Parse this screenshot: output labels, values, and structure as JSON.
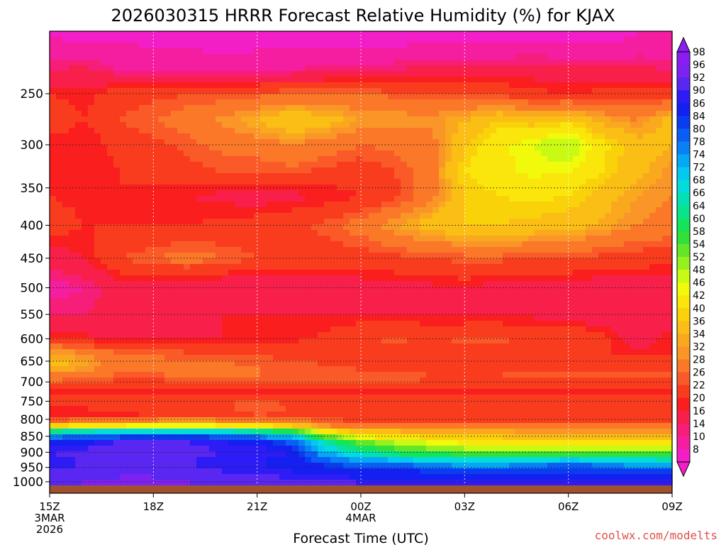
{
  "chart_data": {
    "type": "heatmap",
    "title": "2026030315 HRRR Forecast Relative Humidity (%) for KJAX",
    "xlabel": "Forecast Time (UTC)",
    "ylabel": "",
    "credit": "coolwx.com/modelts",
    "x_ticks": [
      {
        "hour": 0,
        "lines": [
          "15Z",
          "3MAR",
          "2026"
        ]
      },
      {
        "hour": 3,
        "lines": [
          "18Z"
        ]
      },
      {
        "hour": 6,
        "lines": [
          "21Z"
        ]
      },
      {
        "hour": 9,
        "lines": [
          "00Z",
          "4MAR"
        ]
      },
      {
        "hour": 12,
        "lines": [
          "03Z"
        ]
      },
      {
        "hour": 15,
        "lines": [
          "06Z"
        ]
      },
      {
        "hour": 18,
        "lines": [
          "09Z"
        ]
      }
    ],
    "xlim_hours": [
      0,
      18
    ],
    "y_ticks": [
      250,
      300,
      350,
      400,
      450,
      500,
      550,
      600,
      650,
      700,
      750,
      800,
      850,
      900,
      950,
      1000
    ],
    "ylim_hpa": [
      200,
      1013
    ],
    "y_scale": "log-pressure",
    "grid": true,
    "colorbar": {
      "placement": "right",
      "labels": [
        98,
        96,
        92,
        90,
        86,
        84,
        80,
        78,
        74,
        72,
        68,
        66,
        64,
        60,
        58,
        54,
        52,
        48,
        46,
        42,
        40,
        36,
        34,
        32,
        28,
        26,
        22,
        20,
        16,
        14,
        10,
        8
      ],
      "colors": [
        "#8a1ef2",
        "#7d22f0",
        "#5a26f2",
        "#2d1cf5",
        "#1420f0",
        "#0a3cf0",
        "#0a5ef5",
        "#0a80f5",
        "#05a8f5",
        "#04c8f0",
        "#03dcdc",
        "#04e0b4",
        "#08e48c",
        "#14e45a",
        "#32e03a",
        "#64e628",
        "#96f020",
        "#c8fa14",
        "#f0fa0a",
        "#fae60a",
        "#fad20a",
        "#fabe14",
        "#faa81e",
        "#fa9628",
        "#fa7828",
        "#fa5a28",
        "#fa3c1e",
        "#fa1e1e",
        "#f8204a",
        "#f61e78",
        "#f51ea0",
        "#f41ec8"
      ]
    },
    "rows": [
      {
        "p": 205,
        "rh": [
          10,
          9,
          9,
          9,
          9,
          8,
          8,
          8,
          8,
          8,
          8,
          8,
          8,
          8,
          9,
          9,
          9,
          10,
          10
        ]
      },
      {
        "p": 230,
        "rh": [
          16,
          17,
          14,
          13,
          12,
          12,
          13,
          14,
          15,
          15,
          16,
          18,
          18,
          18,
          18,
          17,
          17,
          17,
          16
        ]
      },
      {
        "p": 250,
        "rh": [
          22,
          21,
          24,
          25,
          26,
          26,
          27,
          28,
          28,
          28,
          27,
          27,
          26,
          25,
          23,
          22,
          23,
          24,
          24
        ]
      },
      {
        "p": 275,
        "rh": [
          24,
          22,
          26,
          28,
          30,
          33,
          36,
          40,
          38,
          34,
          34,
          33,
          36,
          40,
          38,
          41,
          35,
          32,
          38
        ]
      },
      {
        "p": 300,
        "rh": [
          21,
          20,
          23,
          25,
          27,
          29,
          30,
          32,
          30,
          28,
          29,
          30,
          40,
          45,
          48,
          52,
          43,
          38,
          36
        ]
      },
      {
        "p": 330,
        "rh": [
          22,
          20,
          22,
          23,
          25,
          26,
          26,
          27,
          25,
          24,
          26,
          30,
          42,
          45,
          47,
          46,
          42,
          37,
          33
        ]
      },
      {
        "p": 360,
        "rh": [
          22,
          21,
          22,
          21,
          20,
          19,
          18,
          19,
          20,
          22,
          25,
          30,
          40,
          42,
          43,
          42,
          38,
          34,
          32
        ]
      },
      {
        "p": 400,
        "rh": [
          24,
          22,
          22,
          22,
          22,
          23,
          24,
          25,
          27,
          30,
          34,
          38,
          40,
          40,
          39,
          38,
          35,
          32,
          30
        ]
      },
      {
        "p": 450,
        "rh": [
          18,
          20,
          26,
          28,
          30,
          28,
          26,
          25,
          24,
          24,
          25,
          26,
          27,
          27,
          26,
          26,
          25,
          24,
          24
        ]
      },
      {
        "p": 500,
        "rh": [
          12,
          14,
          18,
          18,
          17,
          16,
          16,
          17,
          18,
          18,
          19,
          19,
          20,
          18,
          18,
          18,
          17,
          18,
          16
        ]
      },
      {
        "p": 550,
        "rh": [
          16,
          16,
          18,
          19,
          19,
          20,
          20,
          20,
          20,
          20,
          20,
          19,
          19,
          19,
          19,
          18,
          16,
          16,
          16
        ]
      },
      {
        "p": 600,
        "rh": [
          22,
          21,
          19,
          19,
          20,
          20,
          20,
          21,
          23,
          26,
          27,
          26,
          27,
          27,
          26,
          26,
          24,
          16,
          22
        ]
      },
      {
        "p": 630,
        "rh": [
          34,
          32,
          28,
          27,
          26,
          25,
          25,
          25,
          24,
          23,
          22,
          22,
          22,
          22,
          22,
          22,
          22,
          22,
          22
        ]
      },
      {
        "p": 660,
        "rh": [
          38,
          35,
          30,
          30,
          30,
          29,
          28,
          27,
          26,
          25,
          24,
          23,
          23,
          23,
          24,
          24,
          24,
          24,
          24
        ]
      },
      {
        "p": 690,
        "rh": [
          30,
          29,
          27,
          27,
          28,
          28,
          28,
          28,
          28,
          28,
          28,
          27,
          27,
          27,
          27,
          27,
          27,
          27,
          27
        ]
      },
      {
        "p": 720,
        "rh": [
          22,
          21,
          21,
          21,
          21,
          20,
          20,
          20,
          20,
          21,
          21,
          21,
          21,
          21,
          21,
          21,
          21,
          21,
          21
        ]
      },
      {
        "p": 760,
        "rh": [
          22,
          23,
          24,
          25,
          25,
          26,
          28,
          26,
          24,
          24,
          24,
          24,
          24,
          24,
          24,
          24,
          24,
          24,
          24
        ]
      },
      {
        "p": 790,
        "rh": [
          20,
          20,
          21,
          22,
          23,
          24,
          26,
          25,
          23,
          23,
          23,
          23,
          23,
          23,
          23,
          23,
          23,
          23,
          23
        ]
      },
      {
        "p": 815,
        "rh": [
          34,
          38,
          40,
          42,
          42,
          40,
          38,
          36,
          30,
          28,
          28,
          28,
          27,
          27,
          27,
          27,
          27,
          27,
          27
        ]
      },
      {
        "p": 840,
        "rh": [
          72,
          74,
          76,
          78,
          78,
          76,
          72,
          66,
          46,
          40,
          38,
          36,
          36,
          36,
          35,
          35,
          35,
          35,
          35
        ]
      },
      {
        "p": 865,
        "rh": [
          86,
          88,
          92,
          92,
          92,
          90,
          88,
          82,
          66,
          54,
          50,
          46,
          44,
          44,
          44,
          44,
          44,
          44,
          44
        ]
      },
      {
        "p": 900,
        "rh": [
          92,
          94,
          96,
          96,
          94,
          92,
          92,
          90,
          74,
          66,
          62,
          58,
          56,
          56,
          56,
          55,
          56,
          56,
          56
        ]
      },
      {
        "p": 935,
        "rh": [
          90,
          92,
          94,
          94,
          92,
          90,
          90,
          88,
          84,
          80,
          78,
          76,
          74,
          74,
          76,
          80,
          76,
          74,
          72
        ]
      },
      {
        "p": 965,
        "rh": [
          92,
          94,
          96,
          96,
          94,
          92,
          92,
          90,
          90,
          88,
          88,
          86,
          86,
          86,
          86,
          86,
          86,
          86,
          86
        ]
      },
      {
        "p": 990,
        "rh": [
          94,
          96,
          96,
          96,
          96,
          94,
          94,
          92,
          92,
          90,
          90,
          90,
          90,
          90,
          90,
          90,
          90,
          90,
          90
        ]
      },
      {
        "p": 1005,
        "rh": [
          96,
          96,
          96,
          96,
          96,
          96,
          96,
          94,
          94,
          92,
          92,
          92,
          92,
          92,
          92,
          92,
          92,
          92,
          92
        ]
      }
    ],
    "ground_color": "#a0522d"
  }
}
